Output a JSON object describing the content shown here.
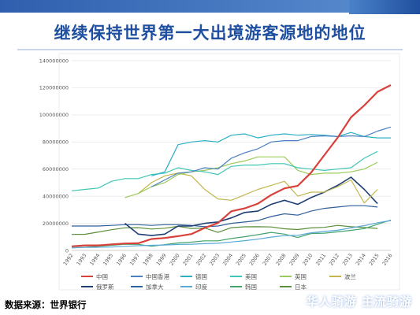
{
  "slide": {
    "title": "继续保持世界第一大出境游客源地的地位",
    "source": "数据来源：世界银行",
    "watermark": "华人骑游 主流骑游"
  },
  "chart_data": {
    "type": "line",
    "title": "",
    "xlabel": "",
    "ylabel": "",
    "ylim": [
      0,
      140000000
    ],
    "yticks": [
      "0",
      "20000000",
      "40000000",
      "60000000",
      "80000000",
      "100000000",
      "120000000",
      "140000000"
    ],
    "x": [
      "1992",
      "1993",
      "1994",
      "1995",
      "1996",
      "1997",
      "1998",
      "1999",
      "2000",
      "2001",
      "2002",
      "2003",
      "2004",
      "2005",
      "2006",
      "2007",
      "2008",
      "2009",
      "2010",
      "2011",
      "2012",
      "2013",
      "2014",
      "2015",
      "2016"
    ],
    "grid": true,
    "legend_position": "bottom",
    "series": [
      {
        "name": "中国",
        "color": "#d9403a",
        "width": 2.2,
        "values": [
          3000000,
          3700000,
          3700000,
          4500000,
          5100000,
          5300000,
          8400000,
          9200000,
          10500000,
          12100000,
          16600000,
          20200000,
          28900000,
          31000000,
          34500000,
          40900000,
          45800000,
          47700000,
          57400000,
          70300000,
          83200000,
          98200000,
          107000000,
          117000000,
          122000000
        ]
      },
      {
        "name": "中国香港",
        "color": "#4a7fc1",
        "width": 1.2,
        "values": [
          null,
          null,
          null,
          null,
          null,
          null,
          47000000,
          52000000,
          57000000,
          58000000,
          61000000,
          60000000,
          68000000,
          72000000,
          75000000,
          80000000,
          81000000,
          81000000,
          84000000,
          84500000,
          84000000,
          84500000,
          84000000,
          88000000,
          91000000
        ]
      },
      {
        "name": "德国",
        "color": "#2bb0c4",
        "width": 1.2,
        "values": [
          null,
          null,
          null,
          null,
          null,
          null,
          55000000,
          58000000,
          78000000,
          80000000,
          81000000,
          80000000,
          85000000,
          86000000,
          83000000,
          85000000,
          86000000,
          85000000,
          85500000,
          85000000,
          84000000,
          87000000,
          84000000,
          83000000,
          83000000
        ]
      },
      {
        "name": "美国",
        "color": "#3fc6b6",
        "width": 1.2,
        "values": [
          44000000,
          45000000,
          46000000,
          51000000,
          53000000,
          53000000,
          56000000,
          57000000,
          61000000,
          59000000,
          58000000,
          56000000,
          62000000,
          63000000,
          63000000,
          64000000,
          64000000,
          61000000,
          60000000,
          59000000,
          60000000,
          61000000,
          68000000,
          73000000,
          null
        ]
      },
      {
        "name": "英国",
        "color": "#9ccb5a",
        "width": 1.2,
        "values": [
          null,
          null,
          null,
          null,
          39000000,
          42000000,
          47000000,
          50000000,
          56000000,
          58000000,
          59000000,
          61000000,
          64000000,
          66000000,
          69000000,
          69000000,
          69000000,
          59000000,
          56000000,
          57000000,
          57000000,
          58000000,
          60000000,
          65000000,
          null
        ]
      },
      {
        "name": "波兰",
        "color": "#c3b64e",
        "width": 1.2,
        "values": [
          null,
          null,
          null,
          null,
          null,
          42000000,
          50000000,
          55000000,
          57000000,
          55000000,
          45000000,
          38000000,
          37000000,
          41000000,
          45000000,
          48000000,
          51000000,
          40000000,
          43000000,
          43000000,
          47000000,
          52000000,
          35000000,
          45000000,
          null
        ]
      },
      {
        "name": "俄罗斯",
        "color": "#1f3f73",
        "width": 1.6,
        "values": [
          null,
          null,
          null,
          null,
          20000000,
          12000000,
          11000000,
          12000000,
          18000000,
          18000000,
          20000000,
          21000000,
          24000000,
          28000000,
          29000000,
          34000000,
          37000000,
          34000000,
          39000000,
          43000000,
          48000000,
          54000000,
          45000000,
          34500000,
          null
        ]
      },
      {
        "name": "加拿大",
        "color": "#2f5f9a",
        "width": 1.2,
        "values": [
          18000000,
          18000000,
          18000000,
          18500000,
          19000000,
          19000000,
          18500000,
          19000000,
          19000000,
          18500000,
          17500000,
          18000000,
          20000000,
          21000000,
          22000000,
          25000000,
          27000000,
          26000000,
          29000000,
          31000000,
          32000000,
          33000000,
          33000000,
          32000000,
          null
        ]
      },
      {
        "name": "印度",
        "color": "#5aa9d8",
        "width": 1.2,
        "values": [
          2000000,
          2200000,
          2300000,
          2500000,
          3000000,
          3500000,
          3800000,
          4000000,
          4400000,
          4600000,
          5000000,
          5300000,
          6200000,
          7200000,
          8300000,
          9800000,
          10900000,
          11100000,
          13000000,
          14000000,
          14900000,
          16600000,
          18300000,
          20400000,
          22000000
        ]
      },
      {
        "name": "韩国",
        "color": "#43a36b",
        "width": 1.2,
        "values": [
          2000000,
          2300000,
          3100000,
          3800000,
          4600000,
          4500000,
          3100000,
          4300000,
          5500000,
          6100000,
          7100000,
          7100000,
          8800000,
          10100000,
          11600000,
          13300000,
          12000000,
          9500000,
          12500000,
          12700000,
          13700000,
          14800000,
          16100000,
          19300000,
          22400000
        ]
      },
      {
        "name": "日本",
        "color": "#5b8f3a",
        "width": 1.2,
        "values": [
          11800000,
          11900000,
          13600000,
          15300000,
          16700000,
          16800000,
          15800000,
          16400000,
          17800000,
          16200000,
          16500000,
          13300000,
          16800000,
          17400000,
          17500000,
          17300000,
          16000000,
          15400000,
          16600000,
          17000000,
          18500000,
          17500000,
          16900000,
          16200000,
          null
        ]
      }
    ]
  }
}
